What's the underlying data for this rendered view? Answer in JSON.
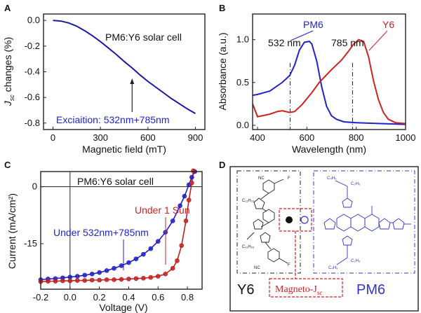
{
  "chart_data": [
    {
      "panel": "A",
      "type": "line",
      "annotation": "PM6:Y6 solar cell",
      "ylabel": "J_sc changes (%)",
      "ylabel_main": "J",
      "ylabel_sub": "sc",
      "ylabel_rest": " changes (%)",
      "xlabel": "Magnetic field (mT)",
      "xlim": [
        -60,
        960
      ],
      "ylim": [
        -0.85,
        0.05
      ],
      "xticks": [
        "0",
        "300",
        "600",
        "900"
      ],
      "xtick_values": [
        0,
        300,
        600,
        900
      ],
      "yticks": [
        "0.0",
        "-0.2",
        "-0.4",
        "-0.6",
        "-0.8"
      ],
      "ytick_values": [
        0.0,
        -0.2,
        -0.4,
        -0.6,
        -0.8
      ],
      "legend_text": "Exciaition: 532nm+785nm",
      "arrow_x": 500,
      "series": [
        {
          "color": "#1a1aa0",
          "x": [
            0,
            50,
            100,
            150,
            200,
            250,
            300,
            350,
            400,
            450,
            500,
            550,
            600,
            650,
            700,
            750,
            800,
            850,
            900
          ],
          "y": [
            0.0,
            -0.005,
            -0.02,
            -0.045,
            -0.08,
            -0.12,
            -0.165,
            -0.215,
            -0.265,
            -0.32,
            -0.37,
            -0.425,
            -0.475,
            -0.52,
            -0.565,
            -0.61,
            -0.65,
            -0.69,
            -0.725
          ]
        }
      ]
    },
    {
      "panel": "B",
      "type": "line",
      "ylabel": "Absorbance (a.u.)",
      "xlabel": "Wavelength (nm)",
      "xlim": [
        380,
        1000
      ],
      "ylim": [
        -0.05,
        1.3
      ],
      "xticks": [
        "400",
        "600",
        "800",
        "1000"
      ],
      "xtick_values": [
        400,
        600,
        800,
        1000
      ],
      "yticks": [
        "0.0",
        "0.5",
        "1.0"
      ],
      "ytick_values": [
        0.0,
        0.5,
        1.0
      ],
      "markers": [
        {
          "label": "532 nm",
          "x": 532
        },
        {
          "label": "785 nm",
          "x": 785
        }
      ],
      "series": [
        {
          "name": "PM6",
          "color": "#2222cc",
          "x": [
            380,
            400,
            450,
            500,
            530,
            550,
            570,
            590,
            610,
            620,
            640,
            660,
            680,
            700,
            720,
            750,
            800,
            900,
            1000
          ],
          "y": [
            0.35,
            0.36,
            0.4,
            0.5,
            0.58,
            0.7,
            0.88,
            0.97,
            0.98,
            0.95,
            0.75,
            0.45,
            0.22,
            0.11,
            0.07,
            0.04,
            0.03,
            0.02,
            0.01
          ]
        },
        {
          "name": "Y6",
          "color": "#cc2222",
          "x": [
            380,
            400,
            450,
            480,
            500,
            530,
            550,
            580,
            620,
            650,
            700,
            740,
            770,
            790,
            810,
            830,
            850,
            870,
            890,
            910,
            930,
            960,
            1000
          ],
          "y": [
            0.25,
            0.1,
            0.13,
            0.16,
            0.17,
            0.15,
            0.16,
            0.24,
            0.38,
            0.5,
            0.65,
            0.76,
            0.87,
            0.95,
            1.0,
            0.98,
            0.8,
            0.52,
            0.3,
            0.15,
            0.07,
            0.03,
            0.02
          ]
        }
      ]
    },
    {
      "panel": "C",
      "type": "line",
      "annotation": "PM6:Y6 solar cell",
      "ylabel": "Current (mA/cm²)",
      "xlabel": "Voltage (V)",
      "xlim": [
        -0.2,
        0.9
      ],
      "ylim": [
        -27,
        4
      ],
      "xticks": [
        "-0.2",
        "0.0",
        "0.2",
        "0.4",
        "0.6",
        "0.8"
      ],
      "xtick_values": [
        -0.2,
        0.0,
        0.2,
        0.4,
        0.6,
        0.8
      ],
      "yticks": [
        "0",
        "-15"
      ],
      "ytick_values": [
        0,
        -15
      ],
      "series": [
        {
          "name": "Under 532nm+785nm",
          "color": "#2020c0",
          "x": [
            -0.2,
            -0.15,
            -0.1,
            -0.05,
            0.0,
            0.05,
            0.1,
            0.15,
            0.2,
            0.25,
            0.3,
            0.35,
            0.4,
            0.45,
            0.5,
            0.55,
            0.6,
            0.65,
            0.7,
            0.75,
            0.78,
            0.81,
            0.83,
            0.85
          ],
          "y": [
            -24.5,
            -24.3,
            -24.2,
            -24.0,
            -23.8,
            -23.6,
            -23.3,
            -23.0,
            -22.6,
            -22.1,
            -21.5,
            -20.8,
            -20.0,
            -19.0,
            -17.8,
            -16.3,
            -14.4,
            -12.0,
            -9.0,
            -5.0,
            -2.5,
            0.5,
            2.5,
            4.0
          ]
        },
        {
          "name": "Under 1 Sun",
          "color": "#c02020",
          "x": [
            -0.2,
            -0.15,
            -0.1,
            -0.05,
            0.0,
            0.05,
            0.1,
            0.15,
            0.2,
            0.25,
            0.3,
            0.35,
            0.4,
            0.45,
            0.5,
            0.55,
            0.6,
            0.65,
            0.7,
            0.73,
            0.76,
            0.79,
            0.81,
            0.83,
            0.84
          ],
          "y": [
            -25.0,
            -24.9,
            -24.9,
            -24.8,
            -24.8,
            -24.7,
            -24.7,
            -24.6,
            -24.6,
            -24.5,
            -24.5,
            -24.4,
            -24.3,
            -24.2,
            -24.1,
            -23.9,
            -23.6,
            -23.0,
            -21.5,
            -19.5,
            -15.5,
            -9.0,
            -3.5,
            1.0,
            4.2
          ]
        }
      ]
    }
  ],
  "panel_labels": [
    "A",
    "B",
    "C",
    "D"
  ],
  "panel_d": {
    "y6_label": "Y6",
    "pm6_label": "PM6",
    "magneto_label": "Magneto-J",
    "magneto_sub": "sc",
    "chain_labels": [
      "C₁₁H₂₃",
      "C₁₁H₂₃",
      "C₄H₉",
      "C₂H₅",
      "C₄H₉",
      "C₂H₅"
    ],
    "colors": {
      "y6": "#222222",
      "pm6": "#3333cc",
      "magneto": "#cc2222"
    }
  }
}
